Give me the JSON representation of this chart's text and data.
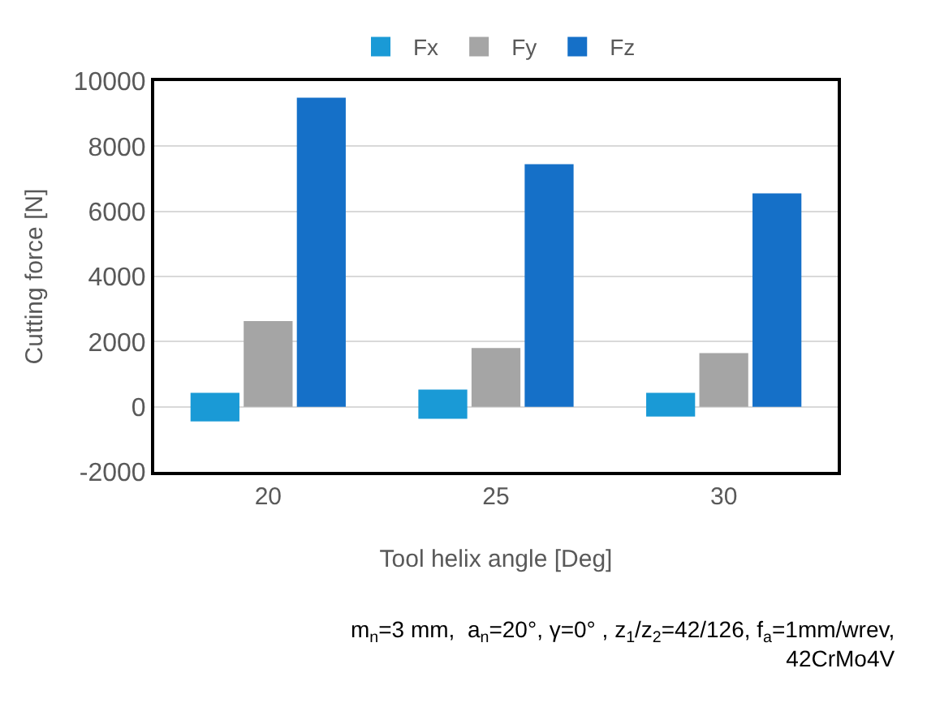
{
  "chart_data": {
    "type": "bar",
    "categories": [
      "20",
      "25",
      "30"
    ],
    "series": [
      {
        "name": "Fx",
        "color": "#1a9ad6",
        "values": [
          880,
          900,
          730
        ],
        "base": [
          -450,
          -370,
          -300
        ]
      },
      {
        "name": "Fy",
        "color": "#a5a5a5",
        "values": [
          2630,
          1800,
          1650
        ]
      },
      {
        "name": "Fz",
        "color": "#1570c8",
        "values": [
          9490,
          7450,
          6550
        ]
      }
    ],
    "xlabel": "Tool helix angle [Deg]",
    "ylabel": "Cutting force [N]",
    "ylim": [
      -2000,
      10000
    ],
    "yticks": [
      -2000,
      0,
      2000,
      4000,
      6000,
      8000,
      10000
    ],
    "grid": "y",
    "legend": "top",
    "annotations": [
      "m$_{n}$=3 mm,  a$_{n}$=20°, γ=0° , z$_{1}$/z$_{2}$=42/126, f$_{a}$=1mm/wrev,\n42CrMo4V"
    ]
  }
}
